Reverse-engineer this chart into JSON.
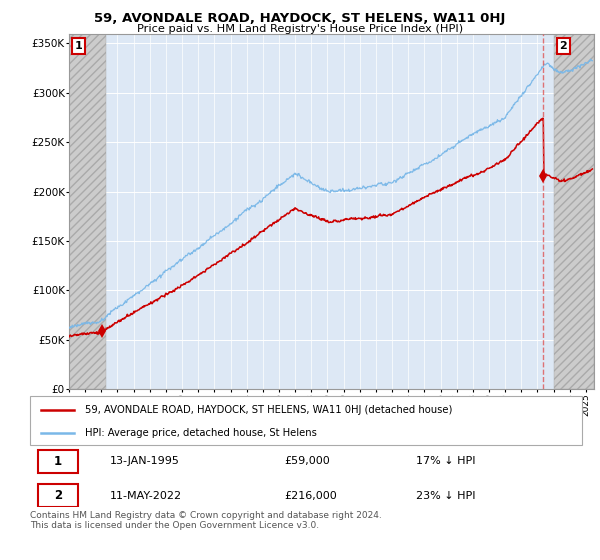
{
  "title": "59, AVONDALE ROAD, HAYDOCK, ST HELENS, WA11 0HJ",
  "subtitle": "Price paid vs. HM Land Registry's House Price Index (HPI)",
  "ylabel_ticks": [
    "£0",
    "£50K",
    "£100K",
    "£150K",
    "£200K",
    "£250K",
    "£300K",
    "£350K"
  ],
  "ytick_vals": [
    0,
    50000,
    100000,
    150000,
    200000,
    250000,
    300000,
    350000
  ],
  "ylim": [
    0,
    360000
  ],
  "xlim_start": 1993.0,
  "xlim_end": 2025.5,
  "sale1_date": 1995.04,
  "sale1_price": 59000,
  "sale2_date": 2022.37,
  "sale2_price": 216000,
  "hpi_color": "#7ab8e8",
  "price_color": "#cc0000",
  "legend_label1": "59, AVONDALE ROAD, HAYDOCK, ST HELENS, WA11 0HJ (detached house)",
  "legend_label2": "HPI: Average price, detached house, St Helens",
  "annotation1_label": "1",
  "annotation2_label": "2",
  "table_row1": [
    "1",
    "13-JAN-1995",
    "£59,000",
    "17% ↓ HPI"
  ],
  "table_row2": [
    "2",
    "11-MAY-2022",
    "£216,000",
    "23% ↓ HPI"
  ],
  "footer": "Contains HM Land Registry data © Crown copyright and database right 2024.\nThis data is licensed under the Open Government Licence v3.0.",
  "hatch_end": 1995.0,
  "hatch_start_right": 2023.0
}
